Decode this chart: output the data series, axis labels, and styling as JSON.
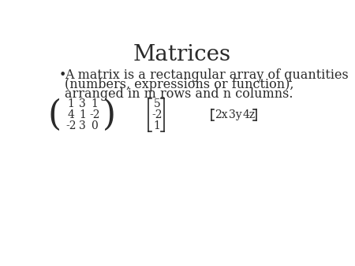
{
  "title": "Matrices",
  "title_fontsize": 20,
  "bullet_text_line1": "A matrix is a rectangular array of quantities",
  "bullet_text_line2": "(numbers, expressions or function),",
  "bullet_text_line3": "arranged in m rows and n columns.",
  "bullet_fontsize": 11.5,
  "matrix1": [
    [
      "1",
      "3",
      "1"
    ],
    [
      "4",
      "1",
      "-2"
    ],
    [
      "-2",
      "3",
      "0"
    ]
  ],
  "matrix2": [
    [
      "5"
    ],
    [
      "-2"
    ],
    [
      "1"
    ]
  ],
  "matrix3": [
    [
      "2x",
      "3y",
      "4z"
    ]
  ],
  "matrix_fontsize": 10,
  "bg_color": "#ffffff",
  "text_color": "#2a2a2a",
  "mat1_bracket": "round",
  "mat2_bracket": "square",
  "mat3_bracket": "square"
}
